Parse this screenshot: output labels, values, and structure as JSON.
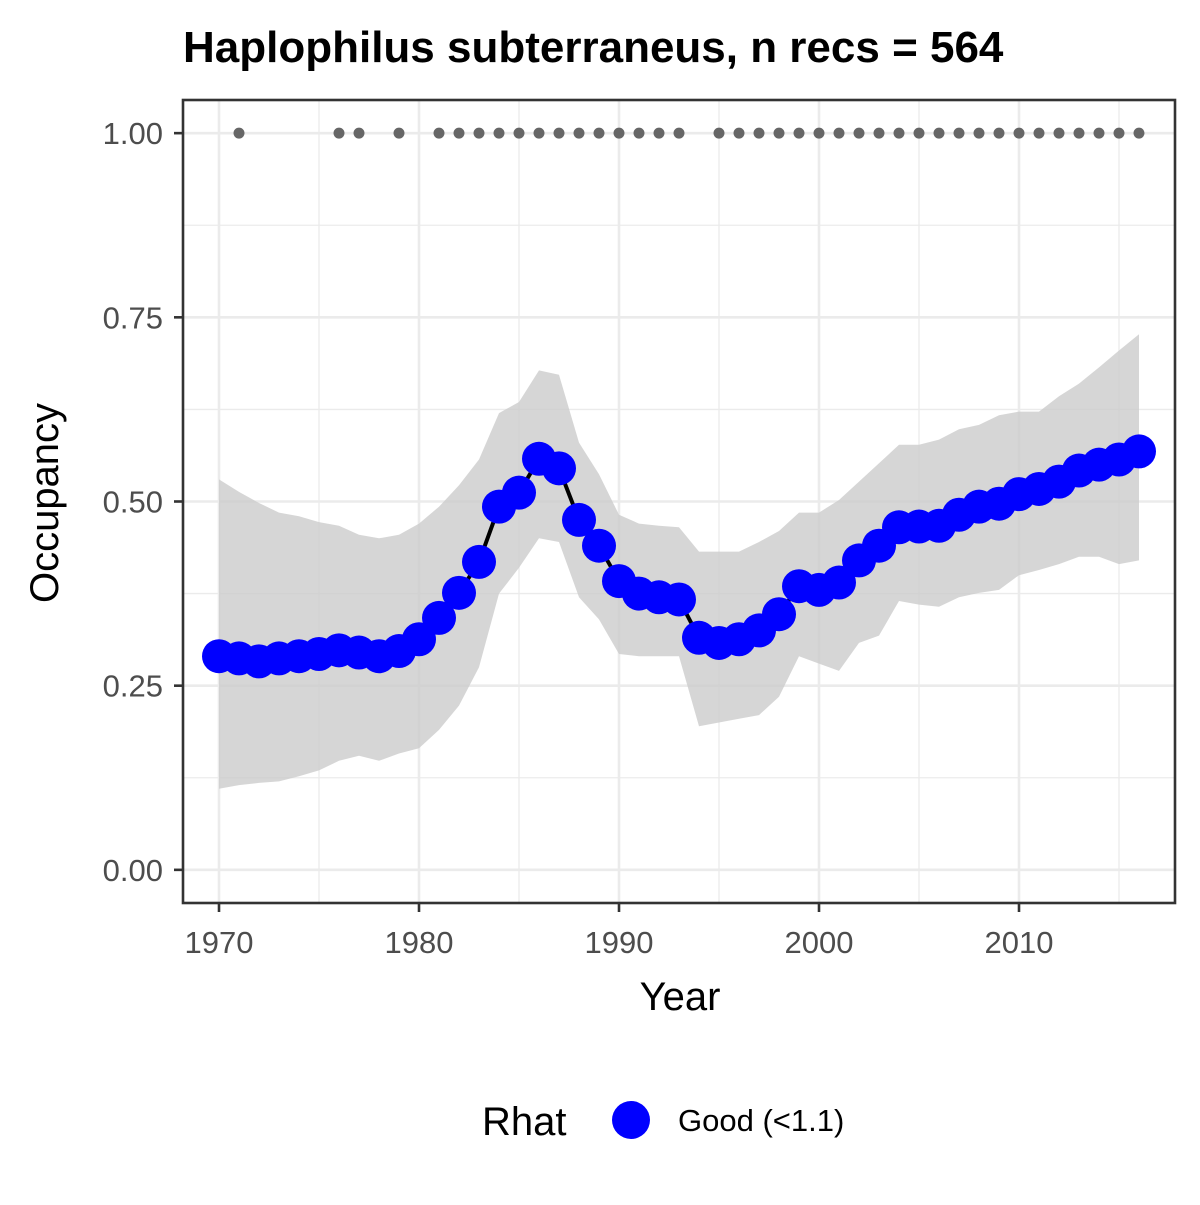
{
  "chart_data": {
    "type": "line",
    "title": "Haplophilus subterraneus, n recs = 564",
    "xlabel": "Year",
    "ylabel": "Occupancy",
    "xlim": [
      1968.2,
      2017.8
    ],
    "ylim": [
      -0.045,
      1.045
    ],
    "x_ticks": [
      1970,
      1980,
      1990,
      2000,
      2010
    ],
    "x_tick_labels": [
      "1970",
      "1980",
      "1990",
      "2000",
      "2010"
    ],
    "y_ticks": [
      0,
      0.25,
      0.5,
      0.75,
      1.0
    ],
    "y_tick_labels": [
      "0.00",
      "0.25",
      "0.50",
      "0.75",
      "1.00"
    ],
    "grid": true,
    "legend": {
      "title": "Rhat",
      "placement": "bottom",
      "entries": [
        {
          "label": "Good (<1.1)",
          "color": "#0000FF"
        }
      ]
    },
    "colors": {
      "points": "#0000FF",
      "line": "#000000",
      "ribbon": "#CCCCCC",
      "record_dots": "#666666",
      "grid": "#EBEBEB",
      "panel_border": "#333333"
    },
    "series": [
      {
        "x": [
          1970,
          1971,
          1972,
          1973,
          1974,
          1975,
          1976,
          1977,
          1978,
          1979,
          1980,
          1981,
          1982,
          1983,
          1984,
          1985,
          1986,
          1987,
          1988,
          1989,
          1990,
          1991,
          1992,
          1993,
          1994,
          1995,
          1996,
          1997,
          1998,
          1999,
          2000,
          2001,
          2002,
          2003,
          2004,
          2005,
          2006,
          2007,
          2008,
          2009,
          2010,
          2011,
          2012,
          2013,
          2014,
          2015,
          2016
        ],
        "mean": [
          0.29,
          0.287,
          0.283,
          0.287,
          0.29,
          0.293,
          0.298,
          0.295,
          0.29,
          0.297,
          0.313,
          0.342,
          0.376,
          0.418,
          0.493,
          0.512,
          0.558,
          0.545,
          0.475,
          0.44,
          0.392,
          0.375,
          0.37,
          0.367,
          0.315,
          0.308,
          0.313,
          0.325,
          0.347,
          0.385,
          0.38,
          0.39,
          0.42,
          0.44,
          0.465,
          0.466,
          0.467,
          0.482,
          0.493,
          0.497,
          0.51,
          0.517,
          0.527,
          0.542,
          0.55,
          0.557,
          0.568
        ],
        "lower": [
          0.11,
          0.115,
          0.118,
          0.12,
          0.127,
          0.135,
          0.148,
          0.155,
          0.148,
          0.158,
          0.165,
          0.19,
          0.223,
          0.275,
          0.375,
          0.41,
          0.45,
          0.445,
          0.37,
          0.34,
          0.293,
          0.29,
          0.29,
          0.29,
          0.195,
          0.2,
          0.205,
          0.21,
          0.235,
          0.29,
          0.28,
          0.27,
          0.308,
          0.318,
          0.365,
          0.36,
          0.357,
          0.37,
          0.376,
          0.38,
          0.4,
          0.407,
          0.415,
          0.425,
          0.425,
          0.415,
          0.42
        ],
        "upper": [
          0.53,
          0.513,
          0.498,
          0.485,
          0.48,
          0.472,
          0.467,
          0.455,
          0.45,
          0.455,
          0.47,
          0.493,
          0.522,
          0.557,
          0.62,
          0.635,
          0.678,
          0.672,
          0.58,
          0.537,
          0.482,
          0.47,
          0.467,
          0.465,
          0.432,
          0.432,
          0.432,
          0.445,
          0.46,
          0.485,
          0.485,
          0.502,
          0.527,
          0.552,
          0.577,
          0.577,
          0.584,
          0.598,
          0.604,
          0.617,
          0.622,
          0.622,
          0.643,
          0.66,
          0.682,
          0.705,
          0.727
        ]
      }
    ],
    "record_years": [
      1971,
      1976,
      1977,
      1979,
      1981,
      1982,
      1983,
      1984,
      1985,
      1986,
      1987,
      1988,
      1989,
      1990,
      1991,
      1992,
      1993,
      1995,
      1996,
      1997,
      1998,
      1999,
      2000,
      2001,
      2002,
      2003,
      2004,
      2005,
      2006,
      2007,
      2008,
      2009,
      2010,
      2011,
      2012,
      2013,
      2014,
      2015,
      2016
    ],
    "record_value": 1.0
  }
}
